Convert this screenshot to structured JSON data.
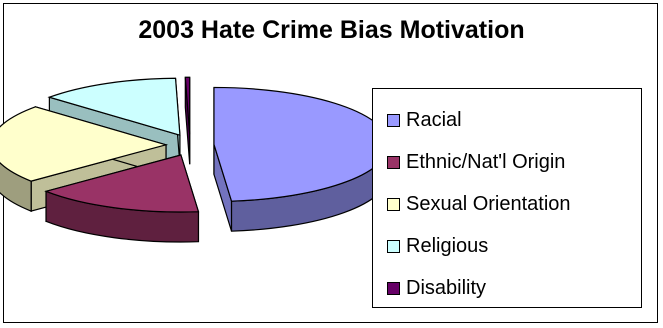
{
  "chart_data": {
    "type": "pie",
    "title": "2003 Hate Crime Bias Motivation",
    "categories": [
      "Racial",
      "Ethnic/Nat'l Origin",
      "Sexual Orientation",
      "Religious",
      "Disability"
    ],
    "values": [
      48.4,
      15.6,
      22.6,
      13.0,
      0.4
    ],
    "colors": [
      "#9999FF",
      "#993366",
      "#FFFFCC",
      "#CCFFFF",
      "#660066"
    ],
    "exploded": true,
    "three_d": true,
    "legend_position": "right"
  }
}
